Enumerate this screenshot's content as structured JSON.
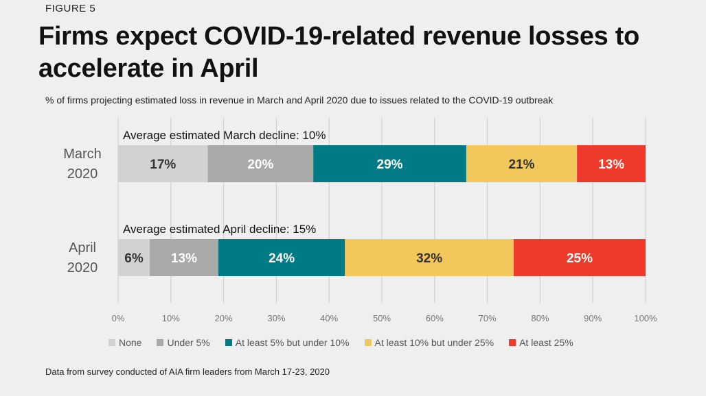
{
  "figure_label": "FIGURE 5",
  "title": "Firms expect COVID-19-related revenue losses to accelerate in April",
  "subtitle": "% of firms projecting estimated loss in revenue in March and April 2020 due to issues related to the COVID-19 outbreak",
  "source": "Data from survey conducted of AIA firm leaders from March 17-23, 2020",
  "colors": {
    "None": "#d2d2d2",
    "Under 5%": "#a9a9a9",
    "At least 5% but under 10%": "#007b85",
    "At least 10% but under 25%": "#f2c75c",
    "At least 25%": "#ee3a2b",
    "grid": "#cccccc",
    "background": "#efefef"
  },
  "chart_data": {
    "type": "bar",
    "orientation": "horizontal",
    "stacked": true,
    "categories": [
      "March 2020",
      "April 2020"
    ],
    "category_lines": [
      [
        "March",
        "2020"
      ],
      [
        "April",
        "2020"
      ]
    ],
    "annotations": [
      "Average estimated March decline: 10%",
      "Average estimated April decline: 15%"
    ],
    "series": [
      {
        "name": "None",
        "values": [
          17,
          6
        ]
      },
      {
        "name": "Under 5%",
        "values": [
          20,
          13
        ]
      },
      {
        "name": "At least 5% but under 10%",
        "values": [
          29,
          24
        ]
      },
      {
        "name": "At least 10% but under 25%",
        "values": [
          21,
          32
        ]
      },
      {
        "name": "At least 25%",
        "values": [
          13,
          25
        ]
      }
    ],
    "xlim": [
      0,
      100
    ],
    "xticks": [
      "0%",
      "10%",
      "20%",
      "30%",
      "40%",
      "50%",
      "60%",
      "70%",
      "80%",
      "90%",
      "100%"
    ],
    "grid": true,
    "legend_position": "bottom",
    "xlabel": "",
    "ylabel": ""
  }
}
